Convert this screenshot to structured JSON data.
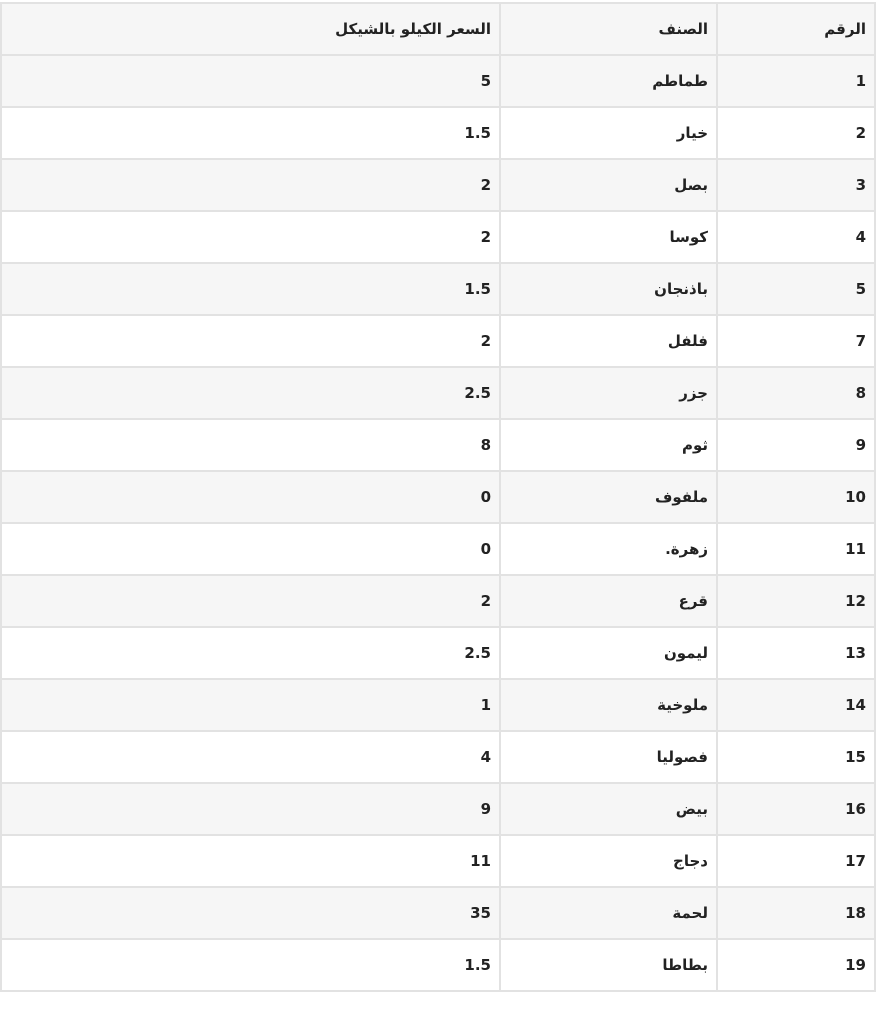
{
  "table": {
    "headers": [
      "الرقم",
      "الصنف",
      "السعر الكيلو بالشيكل"
    ],
    "rows": [
      [
        "1",
        "طماطم",
        "5"
      ],
      [
        "2",
        "خيار",
        "1.5"
      ],
      [
        "3",
        "بصل",
        "2"
      ],
      [
        "4",
        "كوسا",
        "2"
      ],
      [
        "5",
        "باذنجان",
        "1.5"
      ],
      [
        "7",
        "فلفل",
        "2"
      ],
      [
        "8",
        "جزر",
        "2.5"
      ],
      [
        "9",
        "ثوم",
        "8"
      ],
      [
        "10",
        "ملفوف",
        "0"
      ],
      [
        "11",
        "زهرة.",
        "0"
      ],
      [
        "12",
        "قرع",
        "2"
      ],
      [
        "13",
        "ليمون",
        "2.5"
      ],
      [
        "14",
        "ملوخية",
        "1"
      ],
      [
        "15",
        "فصوليا",
        "4"
      ],
      [
        "16",
        "بيض",
        "9"
      ],
      [
        "17",
        "دجاج",
        "11"
      ],
      [
        "18",
        "لحمة",
        "35"
      ],
      [
        "19",
        "بطاطا",
        "1.5"
      ]
    ]
  }
}
